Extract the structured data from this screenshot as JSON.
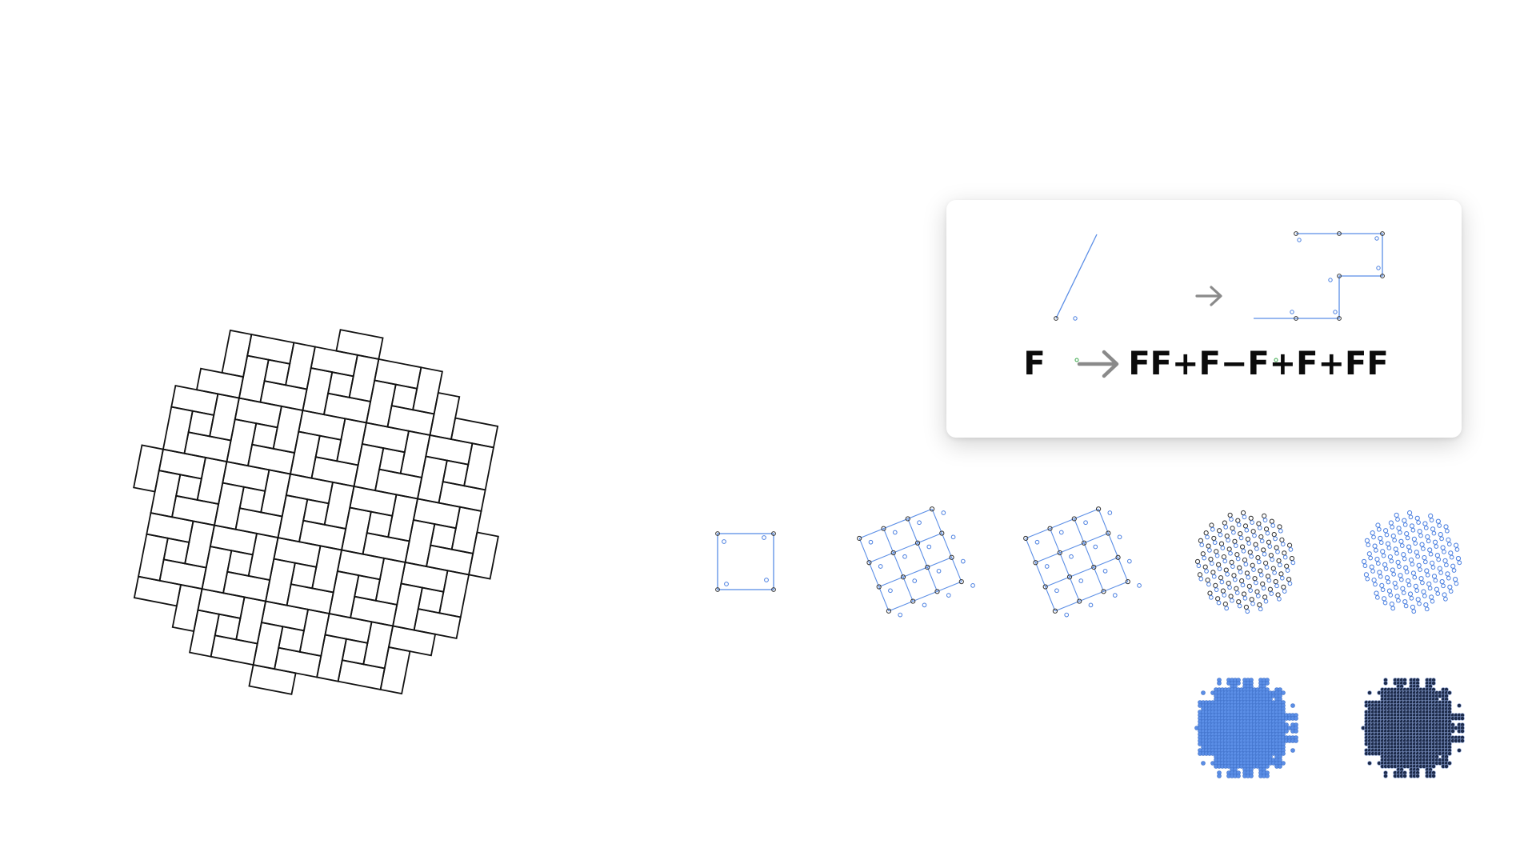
{
  "rule": {
    "axiom": "F",
    "production": "FF+F−F+F+FF"
  },
  "colors": {
    "tiling_stroke": "#111111",
    "curve_stroke": "#5b8ee6",
    "control_point_dark": "#333333",
    "control_point_blue": "#4a7fe0",
    "origin_point_green": "#3aa84a",
    "arrow_gray": "#8a8a8a",
    "dense_fill_blue": "#5b8ee6",
    "dense_fill_dark": "#1d2b4a"
  },
  "iterations": {
    "count": 7,
    "labels_visible": false
  }
}
